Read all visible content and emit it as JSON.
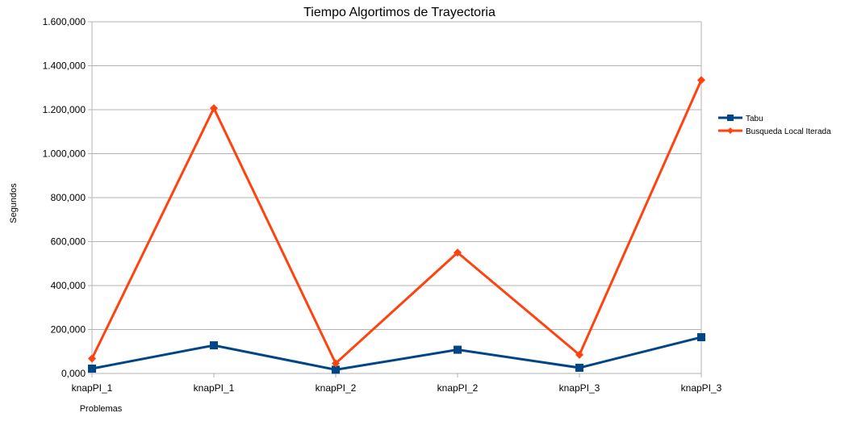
{
  "chart_data": {
    "type": "line",
    "title": "Tiempo Algortimos de Trayectoria",
    "xlabel": "Problemas",
    "ylabel": "Segundos",
    "categories": [
      "knapPI_1",
      "knapPI_1",
      "knapPI_2",
      "knapPI_2",
      "knapPI_3",
      "knapPI_3"
    ],
    "ylim": [
      0,
      1600000
    ],
    "yticks": [
      0,
      200000,
      400000,
      600000,
      800000,
      1000000,
      1200000,
      1400000,
      1600000
    ],
    "ytick_labels": [
      "0,000",
      "200,000",
      "400,000",
      "600,000",
      "800,000",
      "1.000,000",
      "1.200,000",
      "1.400,000",
      "1.600,000"
    ],
    "grid": true,
    "legend_position": "right",
    "series": [
      {
        "name": "Tabu",
        "color": "#004586",
        "marker": "square",
        "values": [
          22000,
          128000,
          17000,
          108000,
          26000,
          165000
        ]
      },
      {
        "name": "Busqueda Local Iterada",
        "color": "#ff420e",
        "marker": "diamond",
        "values": [
          68000,
          1207000,
          46000,
          550000,
          85000,
          1335000
        ]
      }
    ]
  }
}
